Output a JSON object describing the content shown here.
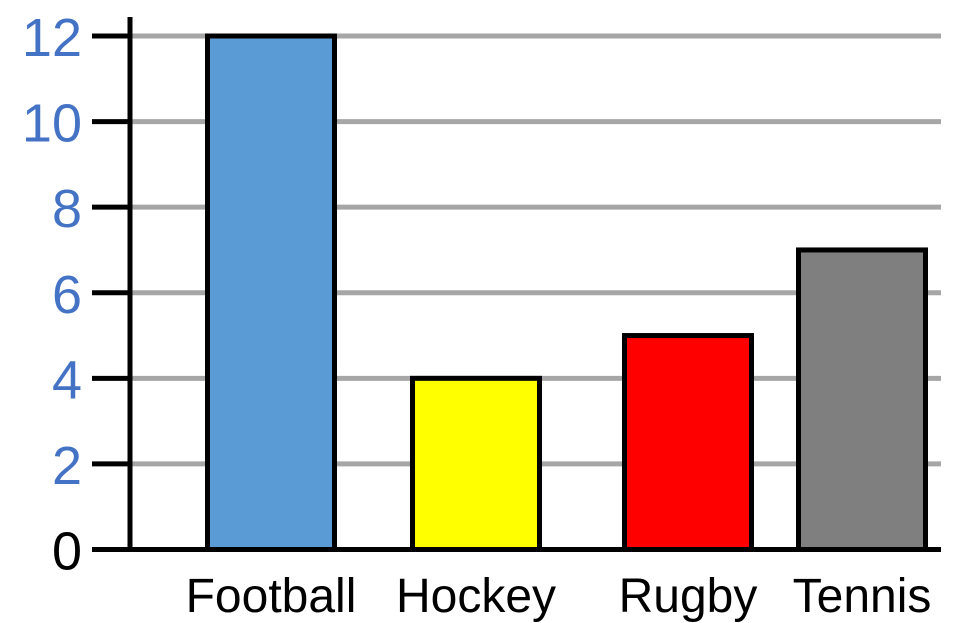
{
  "chart_data": {
    "type": "bar",
    "title": "",
    "xlabel": "",
    "ylabel": "",
    "categories": [
      "Football",
      "Hockey",
      "Rugby",
      "Tennis"
    ],
    "values": [
      12,
      4,
      5,
      7
    ],
    "colors": [
      "#5b9bd5",
      "#ffff00",
      "#ff0000",
      "#7f7f7f"
    ],
    "ylim": [
      0,
      12
    ],
    "yticks": [
      "0",
      "2",
      "4",
      "6",
      "8",
      "10",
      "12"
    ],
    "ytick_colors": {
      "zero": "#000000",
      "other": "#4472c4"
    },
    "grid": true,
    "grid_color": "#a6a6a6",
    "bar_outline_color": "#000000",
    "legend": "none"
  }
}
